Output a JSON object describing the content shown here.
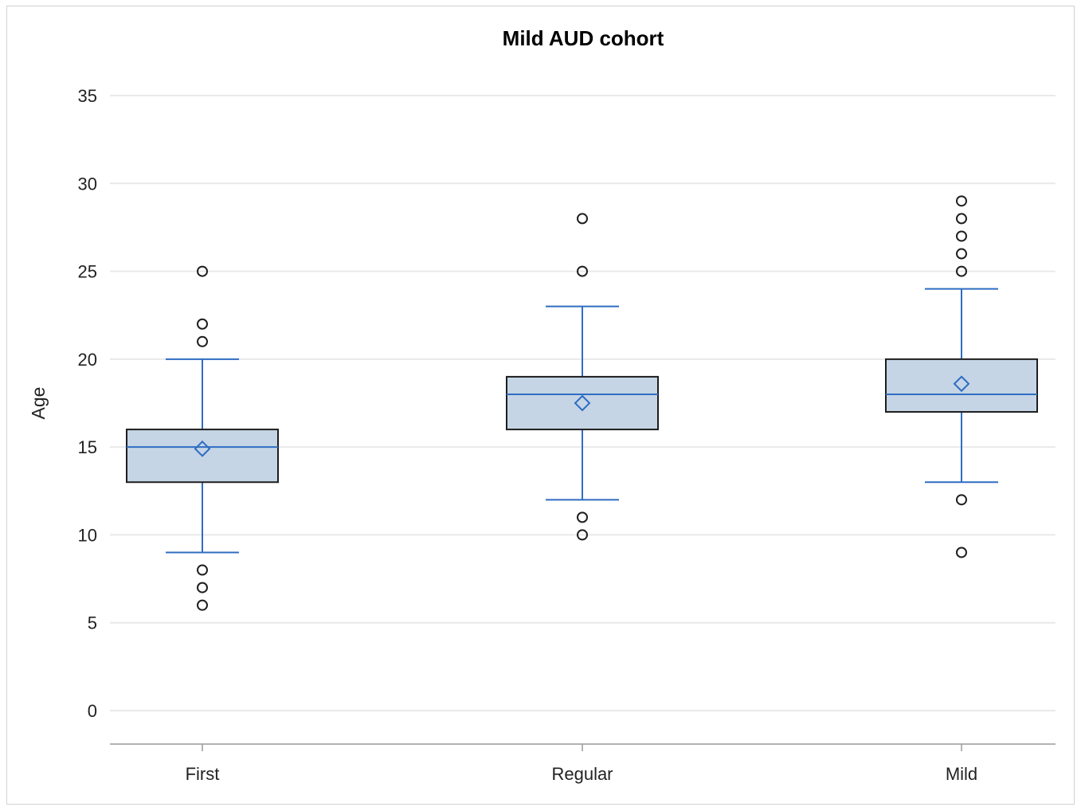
{
  "chart_data": {
    "type": "box",
    "title": "Mild AUD cohort",
    "xlabel": "",
    "ylabel": "Age",
    "ylim": [
      -2,
      36
    ],
    "yticks": [
      0,
      5,
      10,
      15,
      20,
      25,
      30,
      35
    ],
    "grid": true,
    "categories": [
      "First",
      "Regular",
      "Mild"
    ],
    "boxes": [
      {
        "category": "First",
        "whisker_low": 9,
        "q1": 13,
        "median": 15,
        "q3": 16,
        "whisker_high": 20,
        "mean": 14.9,
        "outliers": [
          25,
          22,
          21,
          8,
          7,
          6
        ]
      },
      {
        "category": "Regular",
        "whisker_low": 12,
        "q1": 16,
        "median": 18,
        "q3": 19,
        "whisker_high": 23,
        "mean": 17.5,
        "outliers": [
          28,
          25,
          11,
          10
        ]
      },
      {
        "category": "Mild",
        "whisker_low": 13,
        "q1": 17,
        "median": 18,
        "q3": 20,
        "whisker_high": 24,
        "mean": 18.6,
        "outliers": [
          29,
          28,
          27,
          26,
          25,
          12,
          9
        ]
      }
    ],
    "colors": {
      "box_fill": "#c5d5e6",
      "box_edge": "#1e1e1e",
      "whisker": "#2f6dc2",
      "mean_marker": "#2f6dc2",
      "outlier": "#1e1e1e",
      "grid": "#e9e9e9",
      "axis": "#9a9a9a"
    }
  }
}
